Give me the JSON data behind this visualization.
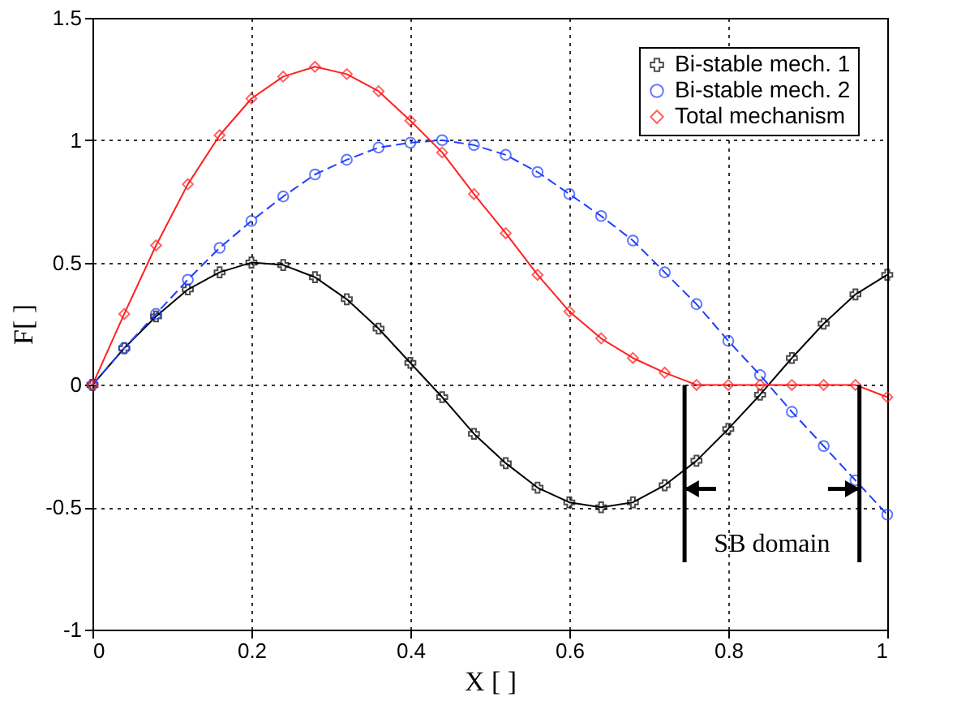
{
  "chart_data": {
    "type": "line",
    "xlabel": "X [ ]",
    "ylabel": "F[ ]",
    "x": [
      0,
      0.04,
      0.08,
      0.12,
      0.16,
      0.2,
      0.24,
      0.28,
      0.32,
      0.36,
      0.4,
      0.44,
      0.48,
      0.52,
      0.56,
      0.6,
      0.64,
      0.68,
      0.72,
      0.76,
      0.8,
      0.84,
      0.88,
      0.92,
      0.96,
      1.0
    ],
    "series": [
      {
        "name": "Bi-stable mech. 1",
        "color": "#000000",
        "marker": "cross",
        "line_style": "solid",
        "values": [
          0,
          0.15,
          0.28,
          0.39,
          0.46,
          0.5,
          0.49,
          0.44,
          0.35,
          0.23,
          0.09,
          -0.05,
          -0.2,
          -0.32,
          -0.42,
          -0.48,
          -0.5,
          -0.48,
          -0.41,
          -0.31,
          -0.18,
          -0.04,
          0.11,
          0.25,
          0.37,
          0.45
        ]
      },
      {
        "name": "Bi-stable mech. 2",
        "color": "#1f3fff",
        "marker": "circle",
        "line_style": "dashed",
        "values": [
          0,
          0.15,
          0.29,
          0.43,
          0.56,
          0.67,
          0.77,
          0.86,
          0.92,
          0.97,
          0.99,
          1.0,
          0.98,
          0.94,
          0.87,
          0.78,
          0.69,
          0.59,
          0.46,
          0.33,
          0.18,
          0.04,
          -0.11,
          -0.25,
          -0.39,
          -0.53
        ]
      },
      {
        "name": "Total mechanism",
        "color": "#ff2020",
        "marker": "diamond",
        "line_style": "solid",
        "values": [
          0,
          0.29,
          0.57,
          0.82,
          1.02,
          1.17,
          1.26,
          1.3,
          1.27,
          1.2,
          1.08,
          0.95,
          0.78,
          0.62,
          0.45,
          0.3,
          0.19,
          0.11,
          0.05,
          0,
          0,
          0,
          0,
          0,
          0,
          -0.05
        ]
      }
    ],
    "xlim": [
      0,
      1
    ],
    "xticks": [
      0,
      0.2,
      0.4,
      0.6,
      0.8,
      1
    ],
    "ylim": [
      -1,
      1.5
    ],
    "yticks": [
      -1,
      -0.5,
      0,
      0.5,
      1,
      1.5
    ],
    "ref_lines": [
      {
        "axis": "x",
        "value": 0.745
      },
      {
        "axis": "x",
        "value": 0.965
      }
    ],
    "annotations": [
      "SB domain"
    ],
    "grid": true,
    "legend": "top right"
  }
}
